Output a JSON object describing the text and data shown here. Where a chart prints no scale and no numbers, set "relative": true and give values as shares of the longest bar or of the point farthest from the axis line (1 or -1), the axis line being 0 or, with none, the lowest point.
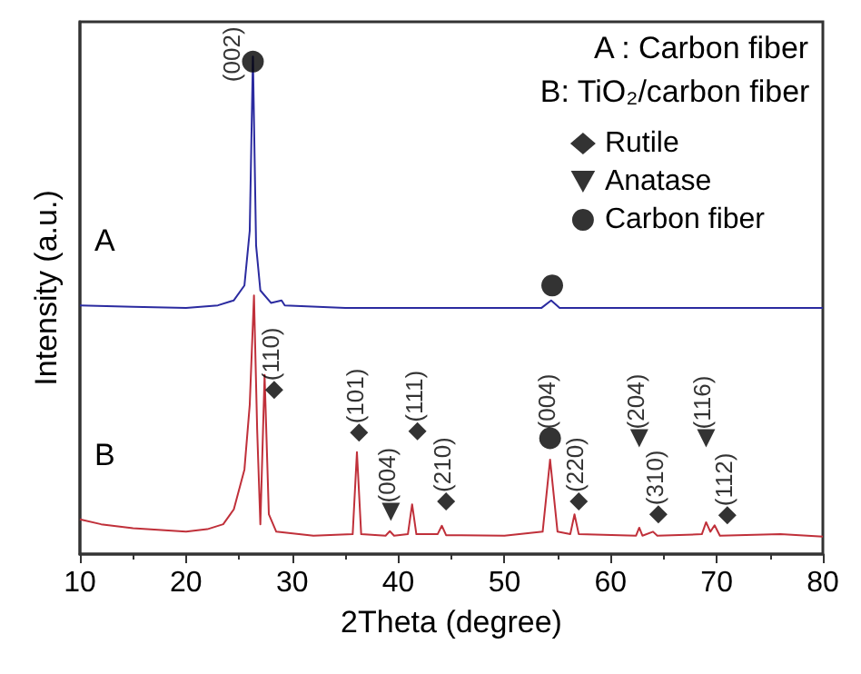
{
  "chart_data": {
    "type": "line",
    "xlabel": "2Theta (degree)",
    "ylabel": "Intensity (a.u.)",
    "relative": true,
    "xlim": [
      10,
      80
    ],
    "xticks": [
      10,
      20,
      30,
      40,
      50,
      60,
      70,
      80
    ],
    "grid": false,
    "legend": "top right",
    "line_style": "solid",
    "marker": "none",
    "series": [
      {
        "name": "A",
        "color": "#2b2ba0",
        "x": [
          10,
          15,
          20,
          23,
          24.5,
          25.5,
          26.0,
          26.3,
          26.6,
          27.0,
          28,
          29,
          29.3,
          35,
          45,
          53.5,
          54.4,
          55.2,
          65,
          80
        ],
        "values": [
          0.5,
          0.497,
          0.495,
          0.5,
          0.51,
          0.54,
          0.65,
          1.0,
          0.62,
          0.53,
          0.505,
          0.51,
          0.5,
          0.495,
          0.495,
          0.495,
          0.51,
          0.495,
          0.495,
          0.495
        ]
      },
      {
        "name": "B",
        "color": "#c0303a",
        "x": [
          10,
          12,
          15,
          20,
          22,
          23.5,
          24.5,
          25.5,
          26.0,
          26.4,
          26.7,
          27.0,
          27.4,
          27.8,
          28.5,
          32,
          35.7,
          36.1,
          36.5,
          38.8,
          39.2,
          39.6,
          40.9,
          41.3,
          41.7,
          43.7,
          44.1,
          44.5,
          50,
          53.6,
          54.3,
          55.0,
          56.2,
          56.6,
          57.0,
          62.4,
          62.7,
          63.0,
          64.0,
          64.4,
          68.6,
          69.0,
          69.4,
          69.8,
          70.3,
          76,
          80
        ],
        "values": [
          0.07,
          0.06,
          0.052,
          0.045,
          0.05,
          0.06,
          0.09,
          0.17,
          0.3,
          0.52,
          0.25,
          0.06,
          0.36,
          0.08,
          0.045,
          0.037,
          0.04,
          0.205,
          0.04,
          0.037,
          0.046,
          0.037,
          0.04,
          0.1,
          0.04,
          0.04,
          0.057,
          0.038,
          0.037,
          0.045,
          0.19,
          0.045,
          0.04,
          0.08,
          0.04,
          0.037,
          0.053,
          0.037,
          0.045,
          0.037,
          0.04,
          0.064,
          0.045,
          0.058,
          0.037,
          0.04,
          0.035
        ]
      },
      {
        "name": "Rutile",
        "type": "scatter",
        "marker": "diamond",
        "color": "#000000",
        "x": [
          28.3,
          36.3,
          41.8,
          44.5,
          57.0,
          64.5,
          71.0
        ],
        "values": [
          0.33,
          0.244,
          0.247,
          0.106,
          0.106,
          0.08,
          0.078
        ]
      },
      {
        "name": "Anatase",
        "type": "scatter",
        "marker": "triangle",
        "color": "#000000",
        "x": [
          39.3,
          62.7,
          69.0
        ],
        "values": [
          0.085,
          0.233,
          0.233
        ]
      },
      {
        "name": "Carbon fiber",
        "type": "scatter",
        "marker": "circle",
        "color": "#000000",
        "x": [
          26.3,
          54.5,
          54.3
        ],
        "values": [
          0.99,
          0.54,
          0.233
        ]
      }
    ],
    "annotations": [
      "A : Carbon fiber",
      "B: TiO₂/carbon fiber",
      {
        "text": "(002)",
        "x": 26.3,
        "y": 0.99
      },
      {
        "text": "(110)",
        "x": 28.3,
        "y": 0.33
      },
      {
        "text": "(101)",
        "x": 36.3,
        "y": 0.244
      },
      {
        "text": "(004)",
        "x": 39.3,
        "y": 0.085
      },
      {
        "text": "(111)",
        "x": 41.8,
        "y": 0.247
      },
      {
        "text": "(210)",
        "x": 44.5,
        "y": 0.106
      },
      {
        "text": "(004)",
        "x": 54.3,
        "y": 0.233
      },
      {
        "text": "(220)",
        "x": 57.0,
        "y": 0.106
      },
      {
        "text": "(204)",
        "x": 62.7,
        "y": 0.233
      },
      {
        "text": "(310)",
        "x": 64.5,
        "y": 0.08
      },
      {
        "text": "(116)",
        "x": 69.0,
        "y": 0.233
      },
      {
        "text": "(112)",
        "x": 71.0,
        "y": 0.078
      }
    ]
  }
}
